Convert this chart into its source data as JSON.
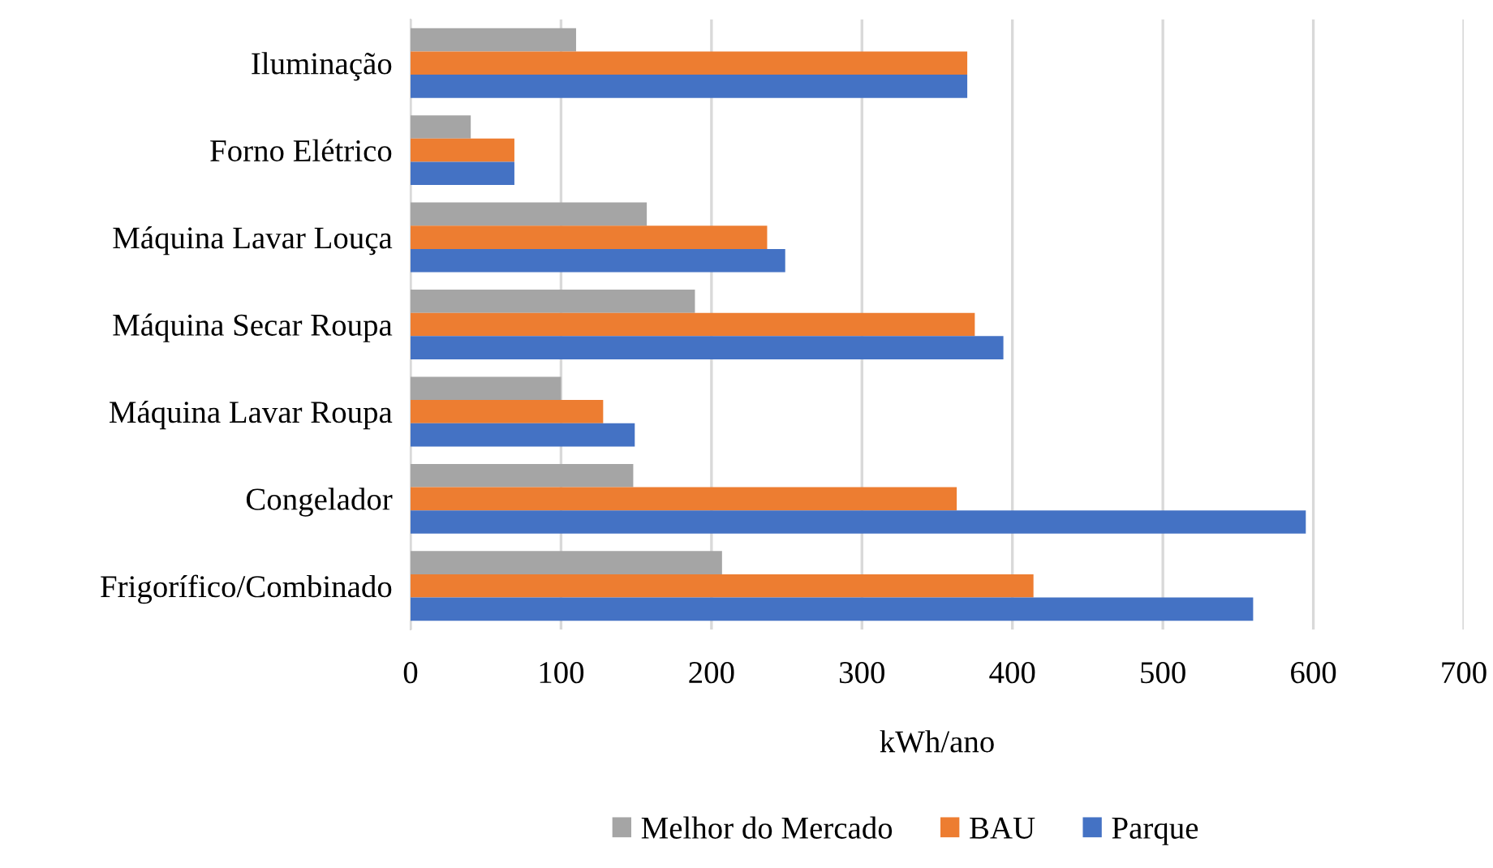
{
  "chart_data": {
    "type": "bar",
    "orientation": "horizontal",
    "xlabel": "kWh/ano",
    "categories": [
      "Iluminação",
      "Forno Elétrico",
      "Máquina Lavar Louça",
      "Máquina Secar Roupa",
      "Máquina Lavar Roupa",
      "Congelador",
      "Frigorífico/Combinado"
    ],
    "series": [
      {
        "name": "Melhor do Mercado",
        "color": "#a5a5a5",
        "values": [
          110,
          40,
          157,
          189,
          100,
          148,
          207
        ]
      },
      {
        "name": "BAU",
        "color": "#ed7d31",
        "values": [
          370,
          69,
          237,
          375,
          128,
          363,
          414
        ]
      },
      {
        "name": "Parque",
        "color": "#4472c4",
        "values": [
          370,
          69,
          249,
          394,
          149,
          595,
          560
        ]
      }
    ],
    "xlim": [
      0,
      700
    ],
    "xticks": [
      0,
      100,
      200,
      300,
      400,
      500,
      600,
      700
    ],
    "grid": "x",
    "legend": "bottom"
  }
}
